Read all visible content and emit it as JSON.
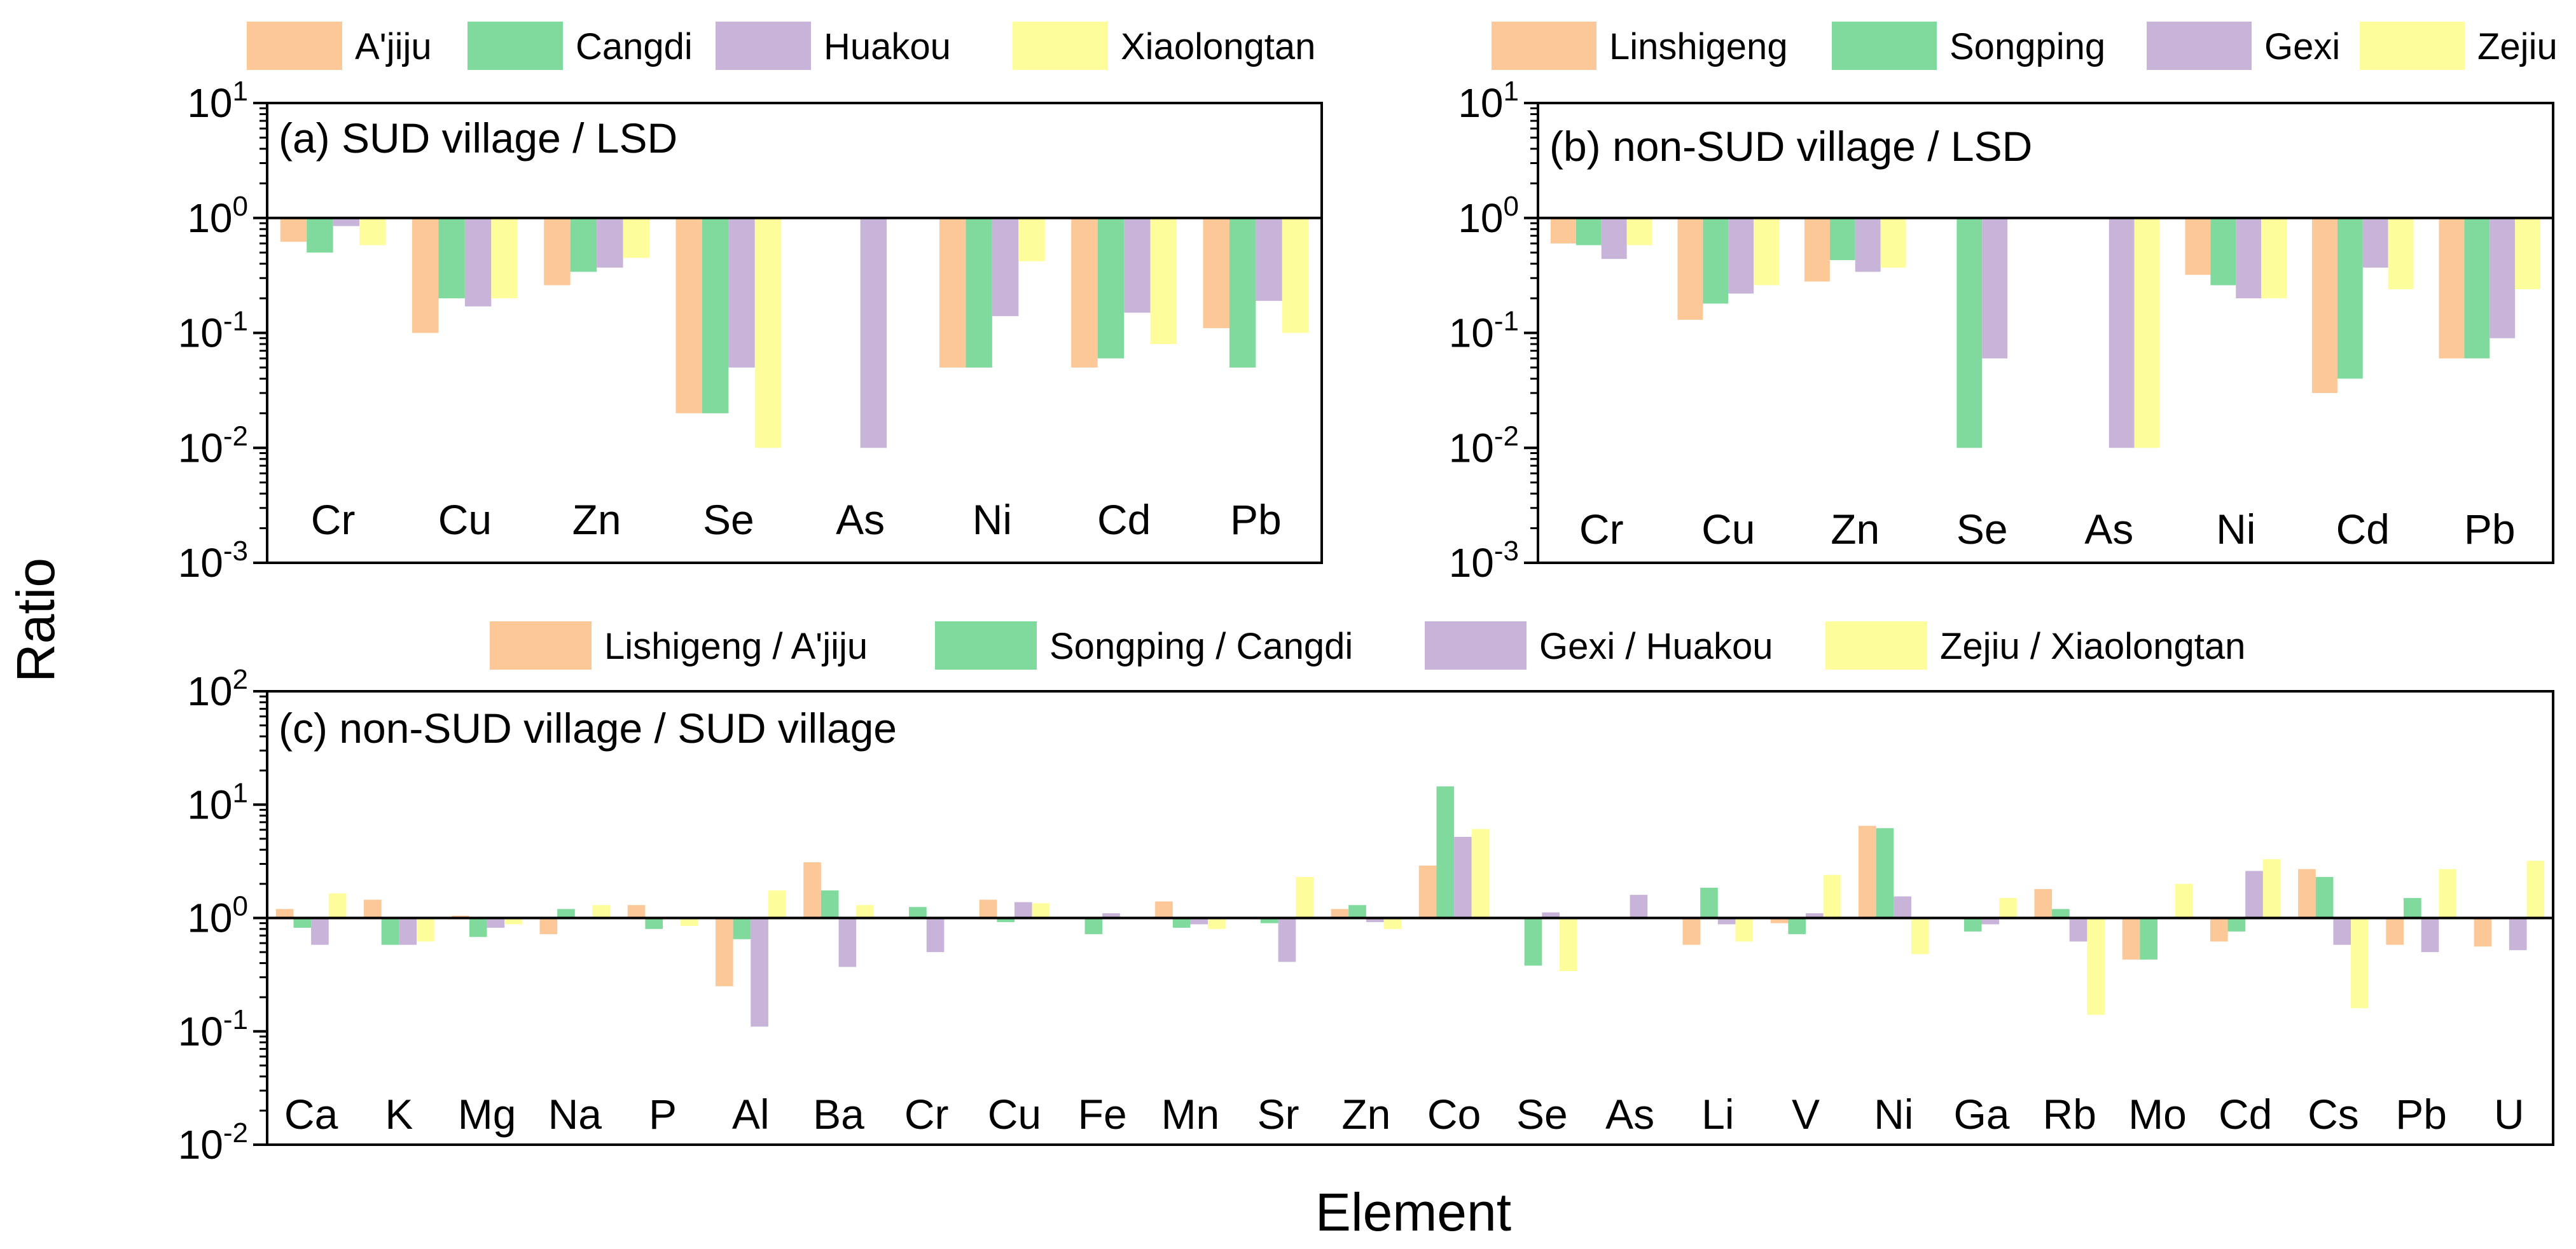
{
  "figure": {
    "ylabel": "Ratio",
    "xlabel": "Element"
  },
  "colors": {
    "orange": "#fcc898",
    "green": "#80da9d",
    "purple": "#c8b4d8",
    "yellow": "#fdfd9c",
    "axis": "#000000"
  },
  "chart_data": [
    {
      "type": "bar",
      "title": "(a) SUD village / LSD",
      "ylabel": "Ratio",
      "yscale": "log",
      "ylim": [
        0.001,
        10
      ],
      "baseline": 1,
      "yticks": [
        {
          "base": "10",
          "exp": "1"
        },
        {
          "base": "10",
          "exp": "0"
        },
        {
          "base": "10",
          "exp": "-1"
        },
        {
          "base": "10",
          "exp": "-2"
        },
        {
          "base": "10",
          "exp": "-3"
        }
      ],
      "legend_position": "top",
      "categories": [
        "Cr",
        "Cu",
        "Zn",
        "Se",
        "As",
        "Ni",
        "Cd",
        "Pb"
      ],
      "series": [
        {
          "name": "A'jiju",
          "color": "orange",
          "values": [
            0.62,
            0.1,
            0.26,
            0.02,
            null,
            0.05,
            0.05,
            0.11
          ]
        },
        {
          "name": "Cangdi",
          "color": "green",
          "values": [
            0.5,
            0.2,
            0.34,
            0.02,
            null,
            0.05,
            0.06,
            0.05
          ]
        },
        {
          "name": "Huakou",
          "color": "purple",
          "values": [
            0.85,
            0.17,
            0.37,
            0.05,
            0.01,
            0.14,
            0.15,
            0.19
          ]
        },
        {
          "name": "Xiaolongtan",
          "color": "yellow",
          "values": [
            0.58,
            0.2,
            0.45,
            0.01,
            null,
            0.42,
            0.08,
            0.1
          ]
        }
      ]
    },
    {
      "type": "bar",
      "title": "(b) non-SUD village / LSD",
      "ylabel": "Ratio",
      "yscale": "log",
      "ylim": [
        0.001,
        10
      ],
      "baseline": 1,
      "yticks": [
        {
          "base": "10",
          "exp": "1"
        },
        {
          "base": "10",
          "exp": "0"
        },
        {
          "base": "10",
          "exp": "-1"
        },
        {
          "base": "10",
          "exp": "-2"
        },
        {
          "base": "10",
          "exp": "-3"
        }
      ],
      "legend_position": "top",
      "categories": [
        "Cr",
        "Cu",
        "Zn",
        "Se",
        "As",
        "Ni",
        "Cd",
        "Pb"
      ],
      "series": [
        {
          "name": "Linshigeng",
          "color": "orange",
          "values": [
            0.6,
            0.13,
            0.28,
            null,
            null,
            0.32,
            0.03,
            0.06
          ]
        },
        {
          "name": "Songping",
          "color": "green",
          "values": [
            0.58,
            0.18,
            0.43,
            0.01,
            null,
            0.26,
            0.04,
            0.06
          ]
        },
        {
          "name": "Gexi",
          "color": "purple",
          "values": [
            0.44,
            0.22,
            0.34,
            0.06,
            0.01,
            0.2,
            0.37,
            0.09
          ]
        },
        {
          "name": "Zejiu",
          "color": "yellow",
          "values": [
            0.58,
            0.26,
            0.37,
            null,
            0.01,
            0.2,
            0.24,
            0.24
          ]
        }
      ]
    },
    {
      "type": "bar",
      "title": "(c) non-SUD village / SUD village",
      "ylabel": "Ratio",
      "xlabel": "Element",
      "yscale": "log",
      "ylim": [
        0.01,
        100
      ],
      "baseline": 1,
      "yticks": [
        {
          "base": "10",
          "exp": "2"
        },
        {
          "base": "10",
          "exp": "1"
        },
        {
          "base": "10",
          "exp": "0"
        },
        {
          "base": "10",
          "exp": "-1"
        },
        {
          "base": "10",
          "exp": "-2"
        }
      ],
      "legend_position": "top",
      "categories": [
        "Ca",
        "K",
        "Mg",
        "Na",
        "P",
        "Al",
        "Ba",
        "Cr",
        "Cu",
        "Fe",
        "Mn",
        "Sr",
        "Zn",
        "Co",
        "Se",
        "As",
        "Li",
        "V",
        "Ni",
        "Ga",
        "Rb",
        "Mo",
        "Cd",
        "Cs",
        "Pb",
        "U"
      ],
      "series": [
        {
          "name": "Lishigeng / A'jiju",
          "color": "orange",
          "values": [
            1.2,
            1.45,
            1.05,
            0.72,
            1.3,
            0.25,
            3.1,
            null,
            1.45,
            null,
            1.4,
            null,
            1.2,
            2.9,
            null,
            null,
            0.58,
            0.9,
            6.5,
            null,
            1.8,
            0.43,
            0.62,
            2.7,
            0.58,
            0.56
          ]
        },
        {
          "name": "Songping / Cangdi",
          "color": "green",
          "values": [
            0.82,
            0.58,
            0.68,
            1.2,
            0.8,
            0.65,
            1.75,
            1.25,
            0.92,
            0.72,
            0.82,
            0.9,
            1.3,
            14.5,
            0.38,
            null,
            1.85,
            0.72,
            6.2,
            0.76,
            1.2,
            0.43,
            0.76,
            2.3,
            1.5,
            null
          ]
        },
        {
          "name": "Gexi / Huakou",
          "color": "purple",
          "values": [
            0.58,
            0.58,
            0.82,
            null,
            null,
            0.11,
            0.37,
            0.5,
            1.38,
            1.1,
            0.88,
            0.41,
            0.92,
            5.2,
            1.12,
            1.6,
            0.88,
            1.1,
            1.55,
            0.88,
            0.62,
            null,
            2.6,
            0.58,
            0.5,
            0.52
          ]
        },
        {
          "name": "Zejiu / Xiaolongtan",
          "color": "yellow",
          "values": [
            1.65,
            0.62,
            0.88,
            1.3,
            0.85,
            1.75,
            1.3,
            null,
            1.35,
            null,
            0.8,
            2.3,
            0.8,
            6.1,
            0.34,
            null,
            0.62,
            2.4,
            0.48,
            1.5,
            0.14,
            2.0,
            3.3,
            0.16,
            2.7,
            3.2
          ]
        }
      ]
    }
  ]
}
